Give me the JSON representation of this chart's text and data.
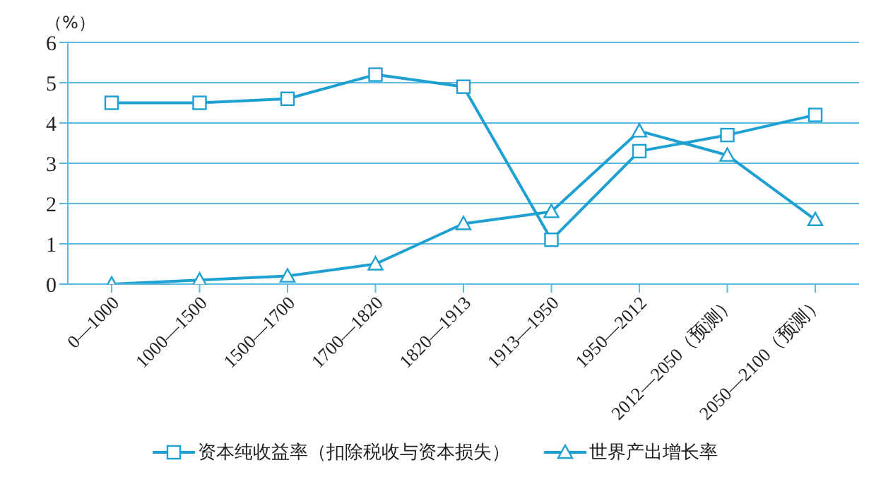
{
  "chart_data": {
    "type": "line",
    "ylabel": "（%）",
    "categories": [
      "0—1000",
      "1000—1500",
      "1500—1700",
      "1700—1820",
      "1820—1913",
      "1913—1950",
      "1950—2012",
      "2012—2050（预测）",
      "2050—2100（预测）"
    ],
    "series": [
      {
        "name": "资本纯收益率（扣除税收与资本损失）",
        "color": "#1ea0d0",
        "marker": "square",
        "values": [
          4.5,
          4.5,
          4.6,
          5.2,
          4.9,
          1.1,
          3.3,
          3.7,
          4.2
        ]
      },
      {
        "name": "世界产出增长率",
        "color": "#1ea0d0",
        "marker": "triangle",
        "values": [
          0,
          0.1,
          0.2,
          0.5,
          1.5,
          1.8,
          3.8,
          3.2,
          1.6
        ]
      }
    ],
    "ylim": [
      0,
      6
    ],
    "yticks": [
      0,
      1,
      2,
      3,
      4,
      5,
      6
    ],
    "grid": "y",
    "legend": "bottom",
    "line_style": "solid"
  }
}
